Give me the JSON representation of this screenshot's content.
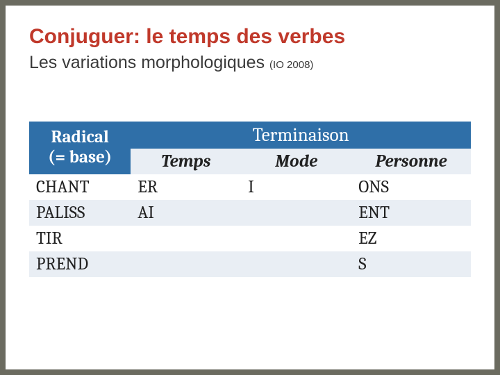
{
  "title": "Conjuguer: le temps des verbes",
  "subtitle_main": "Les variations morphologiques ",
  "subtitle_note": "(IO 2008)",
  "table": {
    "header_radical_line1": "Radical",
    "header_radical_line2": "(= base)",
    "header_terminaison": "Terminaison",
    "header_temps": "Temps",
    "header_mode": "Mode",
    "header_personne": "Personne",
    "rows": [
      {
        "radical": "CHANT",
        "temps": "ER",
        "mode": "I",
        "personne": "ONS"
      },
      {
        "radical": "PALISS",
        "temps": "AI",
        "mode": "",
        "personne": "ENT"
      },
      {
        "radical": "TIR",
        "temps": "",
        "mode": "",
        "personne": "EZ"
      },
      {
        "radical": "PREND",
        "temps": "",
        "mode": "",
        "personne": "S"
      }
    ],
    "colors": {
      "header_bg": "#2f6fa8",
      "header_fg": "#ffffff",
      "alt_row_bg": "#e9eef4",
      "row_bg": "#ffffff",
      "text": "#222222"
    },
    "font_sizes": {
      "title": 30,
      "subtitle": 25,
      "subtitle_note": 15,
      "header": 27,
      "subheader": 25,
      "cell": 25
    }
  }
}
